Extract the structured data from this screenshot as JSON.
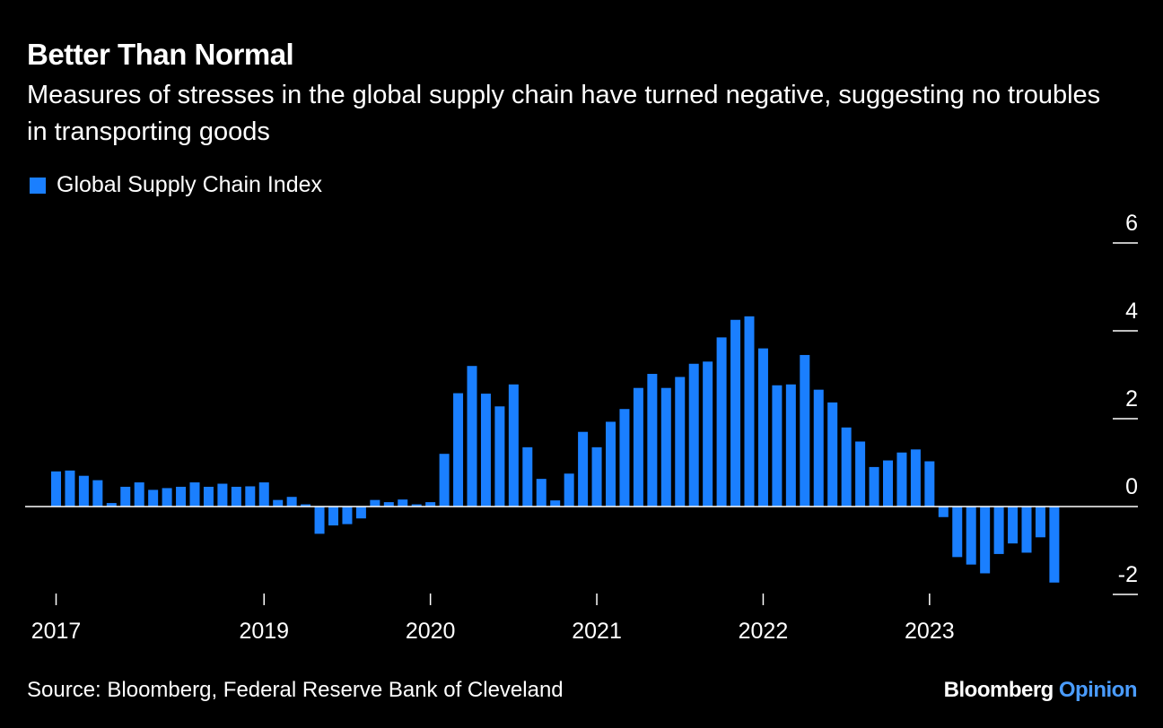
{
  "title": "Better Than Normal",
  "subtitle": "Measures of stresses in the global supply chain have turned negative, suggesting no troubles in transporting goods",
  "source": "Source: Bloomberg, Federal Reserve Bank of Cleveland",
  "brand": {
    "name": "Bloomberg",
    "suffix": "Opinion",
    "suffix_color": "#4a9cff"
  },
  "colors": {
    "bar": "#1a7fff",
    "background": "#000000",
    "text": "#ffffff"
  },
  "chart_data": {
    "type": "bar",
    "legend_position": "top-left",
    "grid": false,
    "ylim": [
      -2,
      6
    ],
    "yticks": [
      6,
      4,
      2,
      0,
      -2
    ],
    "y_axis_side": "right",
    "x_tick_labels": [
      "2017",
      "2019",
      "2020",
      "2021",
      "2022",
      "2023"
    ],
    "x_ticks_at_index": [
      0,
      15,
      27,
      39,
      51,
      63
    ],
    "series": [
      {
        "name": "Global Supply Chain Index",
        "values": [
          0.8,
          0.82,
          0.7,
          0.6,
          0.08,
          0.45,
          0.55,
          0.38,
          0.42,
          0.45,
          0.55,
          0.45,
          0.52,
          0.45,
          0.46,
          0.55,
          0.15,
          0.22,
          0.05,
          -0.62,
          -0.43,
          -0.4,
          -0.27,
          0.15,
          0.1,
          0.16,
          0.05,
          0.1,
          1.2,
          2.58,
          3.2,
          2.57,
          2.28,
          2.78,
          1.35,
          0.63,
          0.14,
          0.75,
          1.7,
          1.35,
          1.93,
          2.22,
          2.7,
          3.02,
          2.7,
          2.95,
          3.25,
          3.3,
          3.85,
          4.25,
          4.33,
          3.6,
          2.76,
          2.78,
          3.45,
          2.66,
          2.37,
          1.8,
          1.48,
          0.9,
          1.05,
          1.23,
          1.3,
          1.03,
          -0.24,
          -1.15,
          -1.32,
          -1.52,
          -1.08,
          -0.84,
          -1.05,
          -0.7,
          -1.73
        ]
      }
    ]
  }
}
